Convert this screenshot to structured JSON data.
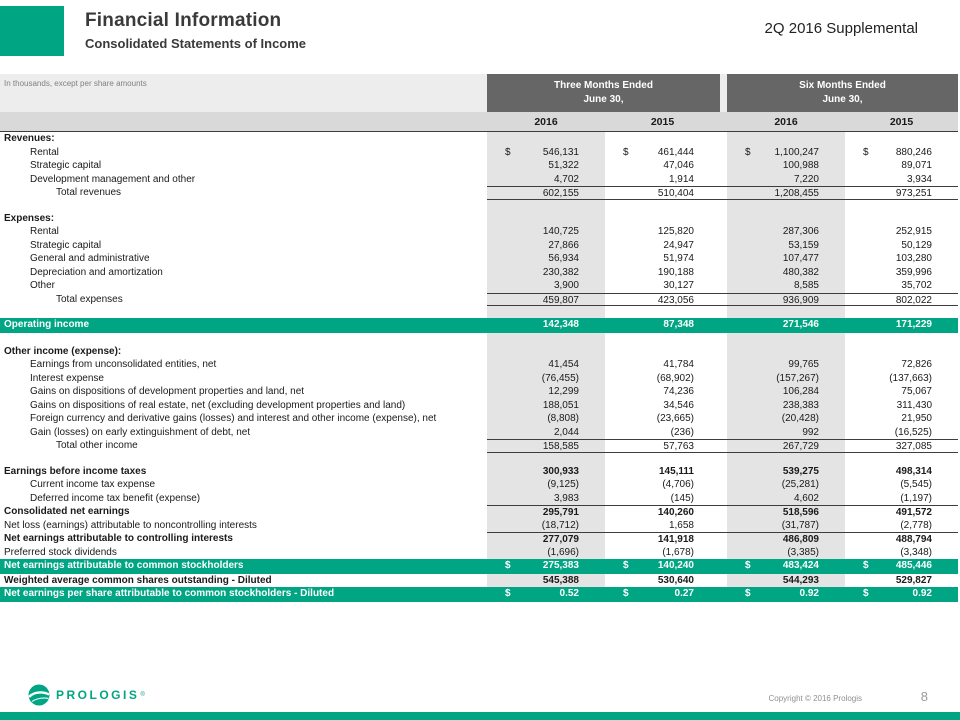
{
  "slide": {
    "title": "Financial Information",
    "subtitle": "Consolidated Statements of Income",
    "corner_label": "2Q 2016 Supplemental",
    "footer": {
      "logo_text": "PROLOGIS",
      "copyright": "Copyright © 2016 Prologis",
      "page_number": "8"
    }
  },
  "colors": {
    "teal": "#00A583",
    "headgray": "#666666",
    "yearbg": "#D9D9D9",
    "shade": "#E4E4E4",
    "notebg": "#EDEDED",
    "rule": "#3D3D3D"
  },
  "table": {
    "note": "In thousands, except per share amounts",
    "column_groups": [
      {
        "line1": "Three Months Ended",
        "line2": "June 30,"
      },
      {
        "line1": "Six Months Ended",
        "line2": "June 30,"
      }
    ],
    "year_headers": [
      "2016",
      "2015",
      "2016",
      "2015"
    ],
    "rows": [
      {
        "type": "section",
        "label": "Revenues:"
      },
      {
        "type": "data",
        "label": "Rental",
        "indent": 1,
        "dollar": true,
        "values": [
          "546,131",
          "461,444",
          "1,100,247",
          "880,246"
        ]
      },
      {
        "type": "data",
        "label": "Strategic capital",
        "indent": 1,
        "values": [
          "51,322",
          "47,046",
          "100,988",
          "89,071"
        ]
      },
      {
        "type": "data",
        "label": "Development management and other",
        "indent": 1,
        "values": [
          "4,702",
          "1,914",
          "7,220",
          "3,934"
        ]
      },
      {
        "type": "data",
        "label": "Total revenues",
        "indent": 2,
        "topline": true,
        "bottomline": true,
        "values": [
          "602,155",
          "510,404",
          "1,208,455",
          "973,251"
        ]
      },
      {
        "type": "spacer"
      },
      {
        "type": "section",
        "label": "Expenses:"
      },
      {
        "type": "data",
        "label": "Rental",
        "indent": 1,
        "values": [
          "140,725",
          "125,820",
          "287,306",
          "252,915"
        ]
      },
      {
        "type": "data",
        "label": "Strategic capital",
        "indent": 1,
        "values": [
          "27,866",
          "24,947",
          "53,159",
          "50,129"
        ]
      },
      {
        "type": "data",
        "label": "General and administrative",
        "indent": 1,
        "values": [
          "56,934",
          "51,974",
          "107,477",
          "103,280"
        ]
      },
      {
        "type": "data",
        "label": "Depreciation and amortization",
        "indent": 1,
        "values": [
          "230,382",
          "190,188",
          "480,382",
          "359,996"
        ]
      },
      {
        "type": "data",
        "label": "Other",
        "indent": 1,
        "values": [
          "3,900",
          "30,127",
          "8,585",
          "35,702"
        ]
      },
      {
        "type": "data",
        "label": "Total expenses",
        "indent": 2,
        "topline": true,
        "bottomline": true,
        "values": [
          "459,807",
          "423,056",
          "936,909",
          "802,022"
        ]
      },
      {
        "type": "spacer"
      },
      {
        "type": "teal",
        "label": "Operating income",
        "values": [
          "142,348",
          "87,348",
          "271,546",
          "171,229"
        ]
      },
      {
        "type": "spacer"
      },
      {
        "type": "section",
        "label": "Other income (expense):"
      },
      {
        "type": "data",
        "label": "Earnings from unconsolidated entities, net",
        "indent": 1,
        "values": [
          "41,454",
          "41,784",
          "99,765",
          "72,826"
        ]
      },
      {
        "type": "data",
        "label": "Interest expense",
        "indent": 1,
        "values": [
          "(76,455)",
          "(68,902)",
          "(157,267)",
          "(137,663)"
        ]
      },
      {
        "type": "data",
        "label": "Gains on dispositions of development properties and land, net",
        "indent": 1,
        "values": [
          "12,299",
          "74,236",
          "106,284",
          "75,067"
        ]
      },
      {
        "type": "data",
        "label": "Gains on dispositions of real estate, net (excluding development properties and land)",
        "indent": 1,
        "values": [
          "188,051",
          "34,546",
          "238,383",
          "311,430"
        ]
      },
      {
        "type": "data",
        "label": "Foreign currency and derivative gains (losses) and interest and other income (expense), net",
        "indent": 1,
        "values": [
          "(8,808)",
          "(23,665)",
          "(20,428)",
          "21,950"
        ]
      },
      {
        "type": "data",
        "label": "Gain (losses) on early extinguishment of debt, net",
        "indent": 1,
        "values": [
          "2,044",
          "(236)",
          "992",
          "(16,525)"
        ]
      },
      {
        "type": "data",
        "label": "Total other income",
        "indent": 2,
        "topline": true,
        "bottomline": true,
        "values": [
          "158,585",
          "57,763",
          "267,729",
          "327,085"
        ]
      },
      {
        "type": "spacer"
      },
      {
        "type": "data",
        "label": "Earnings before income taxes",
        "bold": true,
        "values": [
          "300,933",
          "145,111",
          "539,275",
          "498,314"
        ]
      },
      {
        "type": "data",
        "label": "Current income tax expense",
        "indent": 1,
        "values": [
          "(9,125)",
          "(4,706)",
          "(25,281)",
          "(5,545)"
        ]
      },
      {
        "type": "data",
        "label": "Deferred income tax benefit (expense)",
        "indent": 1,
        "values": [
          "3,983",
          "(145)",
          "4,602",
          "(1,197)"
        ]
      },
      {
        "type": "data",
        "label": "Consolidated net earnings",
        "bold": true,
        "topline": true,
        "values": [
          "295,791",
          "140,260",
          "518,596",
          "491,572"
        ]
      },
      {
        "type": "data",
        "label": "Net loss (earnings) attributable to noncontrolling interests",
        "values": [
          "(18,712)",
          "1,658",
          "(31,787)",
          "(2,778)"
        ]
      },
      {
        "type": "data",
        "label": "Net earnings attributable to controlling interests",
        "bold": true,
        "topline": true,
        "values": [
          "277,079",
          "141,918",
          "486,809",
          "488,794"
        ]
      },
      {
        "type": "data",
        "label": "Preferred stock dividends",
        "values": [
          "(1,696)",
          "(1,678)",
          "(3,385)",
          "(3,348)"
        ]
      },
      {
        "type": "teal",
        "label": "Net earnings attributable to common stockholders",
        "dollar": true,
        "values": [
          "275,383",
          "140,240",
          "483,424",
          "485,446"
        ]
      },
      {
        "type": "data",
        "label": "Weighted average common shares outstanding - Diluted",
        "bold": true,
        "values": [
          "545,388",
          "530,640",
          "544,293",
          "529,827"
        ]
      },
      {
        "type": "teal",
        "label": "Net earnings per share attributable to common stockholders - Diluted",
        "dollar": true,
        "values": [
          "0.52",
          "0.27",
          "0.92",
          "0.92"
        ]
      }
    ]
  }
}
